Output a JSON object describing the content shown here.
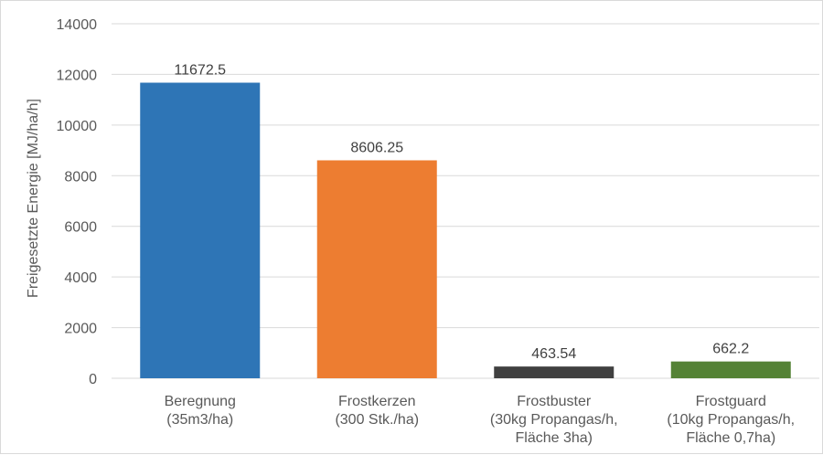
{
  "chart_data": {
    "type": "bar",
    "title": "",
    "xlabel": "",
    "ylabel": "Freigesetzte Energie [MJ/ha/h]",
    "ylim": [
      0,
      14000
    ],
    "yticks": [
      0,
      2000,
      4000,
      6000,
      8000,
      10000,
      12000,
      14000
    ],
    "grid": true,
    "legend": "none",
    "categories": [
      [
        "Beregnung",
        "(35m3/ha)"
      ],
      [
        "Frostkerzen",
        "(300 Stk./ha)"
      ],
      [
        "Frostbuster",
        "(30kg Propangas/h,",
        "Fläche 3ha)"
      ],
      [
        "Frostguard",
        "(10kg Propangas/h,",
        "Fläche 0,7ha)"
      ]
    ],
    "values": [
      11672.5,
      8606.25,
      463.54,
      662.2
    ],
    "data_labels": [
      "11672.5",
      "8606.25",
      "463.54",
      "662.2"
    ],
    "colors": [
      "#2e75b6",
      "#ed7d31",
      "#404040",
      "#548235"
    ],
    "grid_color": "#d9d9d9"
  }
}
